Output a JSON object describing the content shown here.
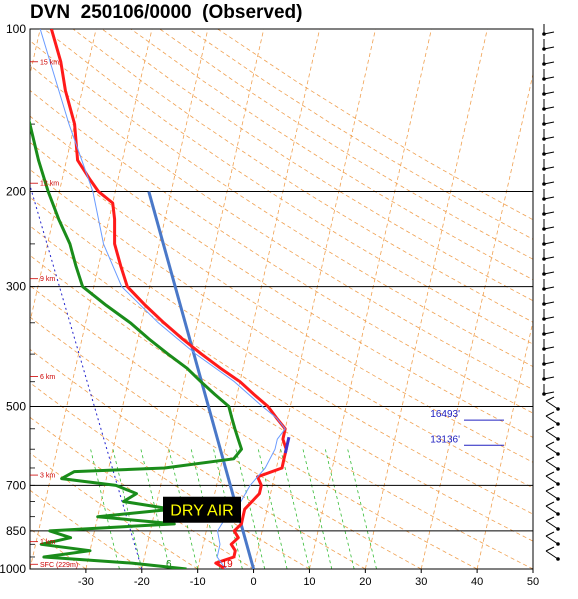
{
  "title": "DVN  250106/0000  (Observed)",
  "chart_data": {
    "type": "line",
    "title": "DVN  250106/0000  (Observed)",
    "pressure_levels": [
      100,
      200,
      300,
      500,
      700,
      850,
      1000
    ],
    "pressure_labels": [
      "100",
      "200",
      "300",
      "500",
      "700",
      "850",
      "1000"
    ],
    "x_ticks": [
      -30,
      -20,
      -10,
      0,
      10,
      20,
      30,
      40,
      50
    ],
    "x_tick_labels": [
      "-30",
      "-20",
      "-10",
      "0",
      "10",
      "20",
      "30",
      "40",
      "50"
    ],
    "xlim": [
      -40,
      50
    ],
    "height_labels": [
      {
        "p": 115,
        "text": "15 km"
      },
      {
        "p": 193,
        "text": "12 km"
      },
      {
        "p": 290,
        "text": "9 km"
      },
      {
        "p": 440,
        "text": "6 km"
      },
      {
        "p": 670,
        "text": "3 km"
      },
      {
        "p": 890,
        "text": "1 km"
      },
      {
        "p": 980,
        "text": "SFC (229m)"
      }
    ],
    "level_labels": [
      {
        "p": 530,
        "text": "16493'"
      },
      {
        "p": 590,
        "text": "13136'"
      }
    ],
    "annotation": "DRY AIR",
    "surface_temperature": "19",
    "surface_dewpoint": "6",
    "series": [
      {
        "color": "#ff1a1a",
        "p": [
          1000,
          975,
          950,
          925,
          900,
          875,
          850,
          825,
          800,
          775,
          750,
          725,
          700,
          675,
          650,
          625,
          600,
          575,
          550,
          525,
          500,
          475,
          450,
          425,
          400,
          375,
          350,
          325,
          300,
          275,
          250,
          225,
          210,
          200,
          190,
          175,
          150,
          130,
          115,
          100
        ],
        "values": [
          -5,
          -7,
          -4,
          -4,
          -5,
          -4,
          -5,
          -4,
          -4,
          -4,
          -3,
          -2,
          -2,
          -3,
          1,
          1,
          1,
          0,
          0,
          -2,
          -4,
          -7,
          -10,
          -14,
          -18,
          -22,
          -26,
          -30,
          -34,
          -36,
          -38,
          -39,
          -40,
          -43,
          -45,
          -48,
          -50,
          -53,
          -55,
          -58
        ]
      },
      {
        "color": "#1a8c1a",
        "p": [
          1000,
          975,
          950,
          925,
          900,
          875,
          850,
          825,
          800,
          775,
          750,
          725,
          700,
          680,
          660,
          650,
          625,
          600,
          575,
          550,
          525,
          500,
          475,
          450,
          425,
          400,
          375,
          350,
          325,
          300,
          275,
          250,
          225,
          200,
          175,
          150,
          125,
          100
        ],
        "values": [
          -12,
          -22,
          -38,
          -30,
          -39,
          -34,
          -38,
          -16,
          -30,
          -17,
          -26,
          -24,
          -28,
          -38,
          -36,
          -20,
          -8,
          -7,
          -8,
          -9,
          -10,
          -11,
          -14,
          -17,
          -20,
          -24,
          -28,
          -32,
          -37,
          -42,
          -44,
          -46,
          -49,
          -52,
          -55,
          -58,
          -62,
          -70
        ]
      },
      {
        "color": "#6a9bff",
        "p": [
          1000,
          950,
          900,
          850,
          800,
          750,
          700,
          650,
          600,
          575,
          550,
          525,
          500,
          450,
          400,
          350,
          300,
          250,
          200,
          150,
          100
        ],
        "values": [
          -5,
          -7,
          -7,
          -8,
          -7,
          -5,
          -4,
          -2,
          -1,
          -1,
          0,
          -2,
          -5,
          -11,
          -19,
          -27,
          -35,
          -40,
          -44,
          -51,
          -60
        ]
      }
    ],
    "grid": true
  }
}
